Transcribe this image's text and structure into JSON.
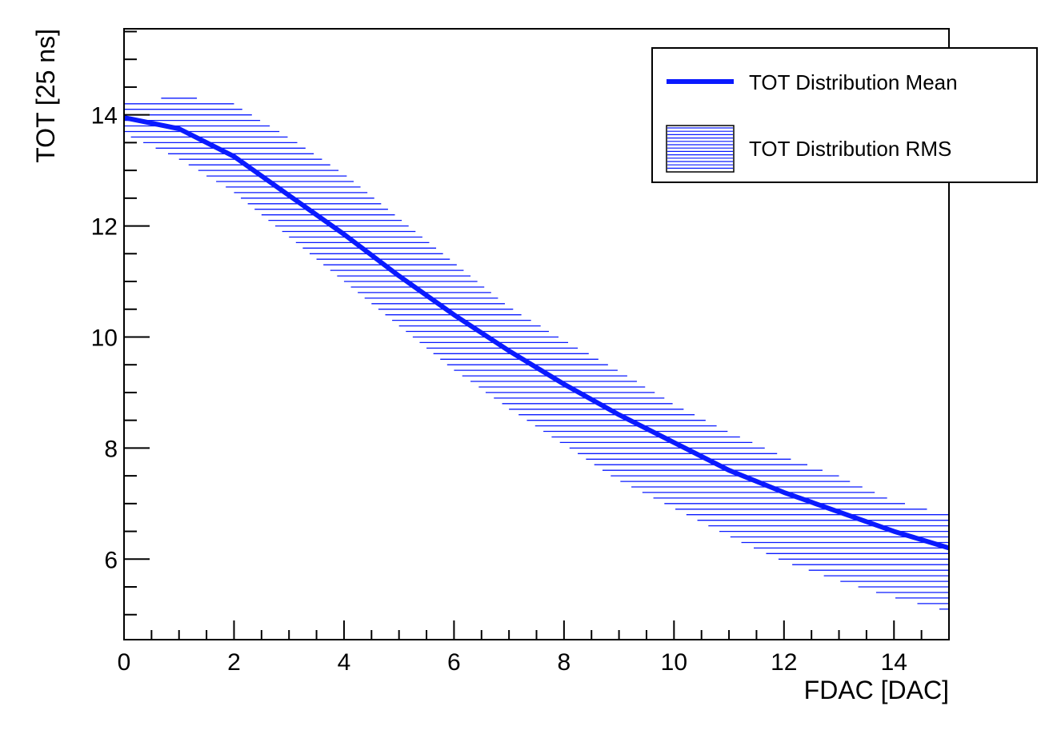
{
  "chart_data": {
    "type": "line",
    "xlabel": "FDAC [DAC]",
    "ylabel": "TOT [25 ns]",
    "xlim": [
      0,
      15
    ],
    "ylim": [
      4.55,
      15.55
    ],
    "x_ticks": [
      0,
      2,
      4,
      6,
      8,
      10,
      12,
      14
    ],
    "y_ticks": [
      6,
      8,
      10,
      12,
      14
    ],
    "grid": false,
    "legend_position": "top-right",
    "series": [
      {
        "name": "TOT Distribution Mean",
        "style": "line",
        "color": "#0a1aff",
        "x": [
          0,
          1,
          2,
          3,
          4,
          5,
          6,
          7,
          8,
          9,
          10,
          11,
          12,
          13,
          14,
          15
        ],
        "y": [
          13.95,
          13.75,
          13.25,
          12.55,
          11.85,
          11.1,
          10.4,
          9.75,
          9.15,
          8.6,
          8.1,
          7.6,
          7.2,
          6.85,
          6.5,
          6.2
        ]
      },
      {
        "name": "TOT Distribution RMS",
        "style": "hatched-band",
        "color": "#0a1aff",
        "x": [
          0,
          1,
          2,
          3,
          4,
          5,
          6,
          7,
          8,
          9,
          10,
          11,
          12,
          13,
          14,
          15
        ],
        "lower": [
          13.65,
          13.2,
          12.6,
          11.8,
          11.0,
          10.2,
          9.4,
          8.7,
          8.05,
          7.4,
          6.9,
          6.4,
          5.95,
          5.6,
          5.3,
          5.05
        ],
        "upper": [
          14.2,
          14.35,
          14.2,
          13.6,
          12.95,
          12.15,
          11.35,
          10.55,
          9.95,
          9.4,
          8.8,
          8.3,
          7.85,
          7.5,
          7.05,
          6.8
        ]
      }
    ]
  }
}
